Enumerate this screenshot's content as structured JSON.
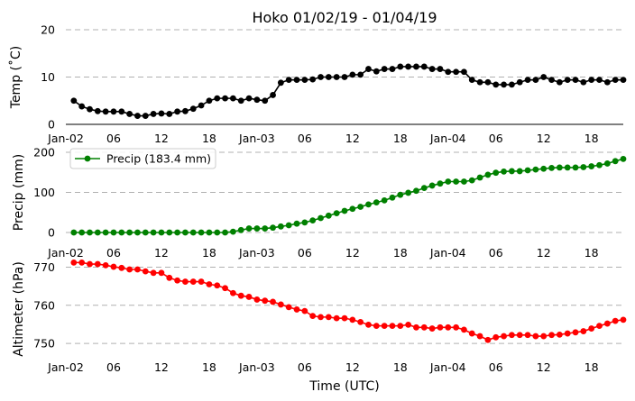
{
  "chart_data": {
    "title": "Hoko 01/02/19 - 01/04/19",
    "xlabel": "Time (UTC)",
    "x_tick_labels": [
      "Jan-02",
      "06",
      "12",
      "18",
      "Jan-03",
      "06",
      "12",
      "18",
      "Jan-04",
      "06",
      "12",
      "18"
    ],
    "x_tick_hours": [
      0,
      6,
      12,
      18,
      24,
      30,
      36,
      42,
      48,
      54,
      60,
      66
    ],
    "x_range_hours": [
      0,
      70
    ],
    "panels": [
      {
        "type": "line",
        "name": "temperature",
        "ylabel": "Temp ($^\\circ$C)",
        "ylim": [
          0,
          20
        ],
        "yticks": [
          0,
          10,
          20
        ],
        "color": "#000000",
        "grid": "horizontal dashed",
        "series": [
          {
            "name": "Temp",
            "x_hours": [
              1,
              2,
              3,
              4,
              5,
              6,
              7,
              8,
              9,
              10,
              11,
              12,
              13,
              14,
              15,
              16,
              17,
              18,
              19,
              20,
              21,
              22,
              23,
              24,
              25,
              26,
              27,
              28,
              29,
              30,
              31,
              32,
              33,
              34,
              35,
              36,
              37,
              38,
              39,
              40,
              41,
              42,
              43,
              44,
              45,
              46,
              47,
              48,
              49,
              50,
              51,
              52,
              53,
              54,
              55,
              56,
              57,
              58,
              59,
              60,
              61,
              62,
              63,
              64,
              65,
              66,
              67,
              68,
              69,
              70
            ],
            "values": [
              5.0,
              3.8,
              3.2,
              2.8,
              2.7,
              2.7,
              2.7,
              2.2,
              1.8,
              1.8,
              2.2,
              2.3,
              2.2,
              2.7,
              2.8,
              3.3,
              4.0,
              5.0,
              5.5,
              5.5,
              5.5,
              5.0,
              5.5,
              5.2,
              5.0,
              6.2,
              8.8,
              9.4,
              9.4,
              9.4,
              9.5,
              10.0,
              10.0,
              10.0,
              10.0,
              10.5,
              10.5,
              11.7,
              11.2,
              11.7,
              11.7,
              12.2,
              12.2,
              12.2,
              12.2,
              11.7,
              11.7,
              11.1,
              11.1,
              11.1,
              9.4,
              8.9,
              8.9,
              8.4,
              8.4,
              8.4,
              8.9,
              9.4,
              9.4,
              10.0,
              9.4,
              8.9,
              9.4,
              9.4,
              8.9,
              9.4,
              9.4,
              8.9,
              9.4,
              9.4
            ]
          }
        ]
      },
      {
        "type": "line",
        "name": "precipitation",
        "ylabel": "Precip (mm)",
        "ylim": [
          0,
          200
        ],
        "yticks": [
          0,
          100,
          200
        ],
        "color": "#008000",
        "grid": "horizontal dashed",
        "legend": {
          "label": "Precip (183.4 mm)",
          "position": "upper left"
        },
        "series": [
          {
            "name": "Precip (183.4 mm)",
            "x_hours": [
              1,
              2,
              3,
              4,
              5,
              6,
              7,
              8,
              9,
              10,
              11,
              12,
              13,
              14,
              15,
              16,
              17,
              18,
              19,
              20,
              21,
              22,
              23,
              24,
              25,
              26,
              27,
              28,
              29,
              30,
              31,
              32,
              33,
              34,
              35,
              36,
              37,
              38,
              39,
              40,
              41,
              42,
              43,
              44,
              45,
              46,
              47,
              48,
              49,
              50,
              51,
              52,
              53,
              54,
              55,
              56,
              57,
              58,
              59,
              60,
              61,
              62,
              63,
              64,
              65,
              66,
              67,
              68,
              69,
              70
            ],
            "values": [
              0,
              0,
              0,
              0,
              0,
              0,
              0,
              0,
              0,
              0,
              0,
              0,
              0,
              0,
              0,
              0,
              0,
              0,
              0,
              0,
              2,
              6,
              10,
              10,
              10,
              12,
              15,
              18,
              22,
              25,
              30,
              36,
              42,
              48,
              54,
              59,
              64,
              70,
              75,
              80,
              87,
              94,
              99,
              104,
              111,
              117,
              122,
              127,
              127,
              127,
              130,
              137,
              144,
              149,
              152,
              153,
              153,
              155,
              157,
              159,
              161,
              162,
              162,
              162,
              163,
              165,
              168,
              172,
              178,
              183.4
            ]
          }
        ]
      },
      {
        "type": "line",
        "name": "altimeter",
        "ylabel": "Altimeter (hPa)",
        "ylim": [
          746,
          772
        ],
        "yticks": [
          750,
          760,
          770
        ],
        "color": "#ff0000",
        "grid": "horizontal dashed",
        "series": [
          {
            "name": "Altimeter",
            "x_hours": [
              1,
              2,
              3,
              4,
              5,
              6,
              7,
              8,
              9,
              10,
              11,
              12,
              13,
              14,
              15,
              16,
              17,
              18,
              19,
              20,
              21,
              22,
              23,
              24,
              25,
              26,
              27,
              28,
              29,
              30,
              31,
              32,
              33,
              34,
              35,
              36,
              37,
              38,
              39,
              40,
              41,
              42,
              43,
              44,
              45,
              46,
              47,
              48,
              49,
              50,
              51,
              52,
              53,
              54,
              55,
              56,
              57,
              58,
              59,
              60,
              61,
              62,
              63,
              64,
              65,
              66,
              67,
              68,
              69,
              70
            ],
            "values": [
              771.2,
              771.2,
              770.8,
              770.8,
              770.5,
              770.1,
              769.8,
              769.4,
              769.4,
              768.9,
              768.5,
              768.5,
              767.2,
              766.5,
              766.2,
              766.2,
              766.2,
              765.5,
              765.2,
              764.5,
              763.2,
              762.5,
              762.2,
              761.5,
              761.2,
              760.9,
              760.2,
              759.5,
              758.9,
              758.5,
              757.2,
              756.9,
              756.9,
              756.6,
              756.6,
              756.2,
              755.6,
              754.9,
              754.6,
              754.6,
              754.6,
              754.6,
              754.9,
              754.2,
              754.2,
              753.9,
              754.2,
              754.2,
              754.2,
              753.6,
              752.6,
              751.9,
              750.9,
              751.6,
              751.9,
              752.2,
              752.2,
              752.2,
              751.9,
              751.9,
              752.2,
              752.3,
              752.6,
              752.9,
              753.2,
              753.9,
              754.6,
              755.2,
              755.9,
              756.2
            ]
          }
        ]
      }
    ]
  }
}
